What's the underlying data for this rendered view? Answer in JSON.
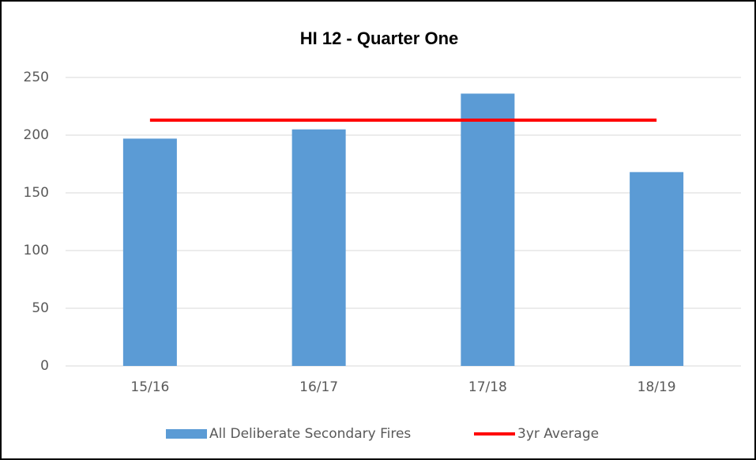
{
  "chart_data": {
    "type": "bar",
    "title": "HI 12 - Quarter One",
    "categories": [
      "15/16",
      "16/17",
      "17/18",
      "18/19"
    ],
    "series": [
      {
        "name": "All Deliberate Secondary Fires",
        "type": "bar",
        "color": "#5b9bd5",
        "values": [
          197,
          205,
          236,
          168
        ]
      },
      {
        "name": "3yr Average",
        "type": "line",
        "color": "#ff0000",
        "values": [
          213,
          213,
          213,
          213
        ]
      }
    ],
    "ylim": [
      0,
      250
    ],
    "yticks": [
      0,
      50,
      100,
      150,
      200,
      250
    ],
    "grid": true,
    "legend": "bottom"
  }
}
